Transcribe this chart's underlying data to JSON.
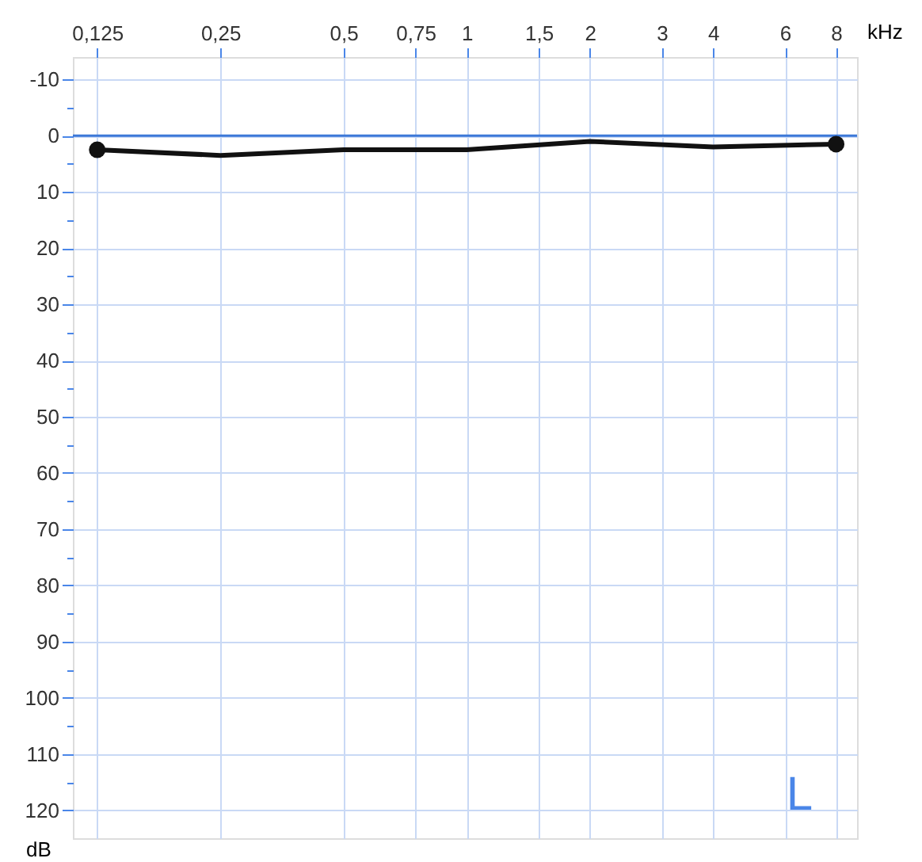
{
  "chart_data": {
    "type": "line",
    "xlabel": "kHz",
    "ylabel": "dB",
    "x": [
      0.125,
      0.25,
      0.5,
      1,
      2,
      4,
      8
    ],
    "series": [
      {
        "color": "#111111",
        "values": [
          2.5,
          3.5,
          2.5,
          2.5,
          1,
          2,
          1.5
        ],
        "marker": "none"
      },
      {
        "type": "scatter",
        "color": "#111111",
        "x": [
          0.125,
          8
        ],
        "values": [
          2.5,
          1.5
        ],
        "marker": "circle"
      }
    ],
    "log": "x",
    "xlim": [
      0.109,
      9
    ],
    "ylim": [
      125,
      -14
    ],
    "xticks": [
      {
        "value": 0.125,
        "label": "0,125"
      },
      {
        "value": 0.25,
        "label": "0,25"
      },
      {
        "value": 0.5,
        "label": "0,5"
      },
      {
        "value": 0.75,
        "label": "0,75"
      },
      1,
      {
        "value": 1.5,
        "label": "1,5"
      },
      2,
      3,
      4,
      6,
      8
    ],
    "yticks": [
      -10,
      {
        "value": -5,
        "label": null
      },
      0,
      {
        "value": 5,
        "label": null
      },
      10,
      {
        "value": 15,
        "label": null
      },
      20,
      {
        "value": 25,
        "label": null
      },
      30,
      {
        "value": 35,
        "label": null
      },
      40,
      {
        "value": 45,
        "label": null
      },
      50,
      {
        "value": 55,
        "label": null
      },
      60,
      {
        "value": 65,
        "label": null
      },
      70,
      {
        "value": 75,
        "label": null
      },
      80,
      {
        "value": 85,
        "label": null
      },
      90,
      {
        "value": 95,
        "label": null
      },
      100,
      {
        "value": 105,
        "label": null
      },
      110,
      {
        "value": 115,
        "label": null
      },
      120
    ],
    "grid": true,
    "ref_lines": [
      {
        "axis": "y",
        "value": 0,
        "color": "#3c78d8"
      }
    ],
    "annotations": [
      "L"
    ]
  }
}
